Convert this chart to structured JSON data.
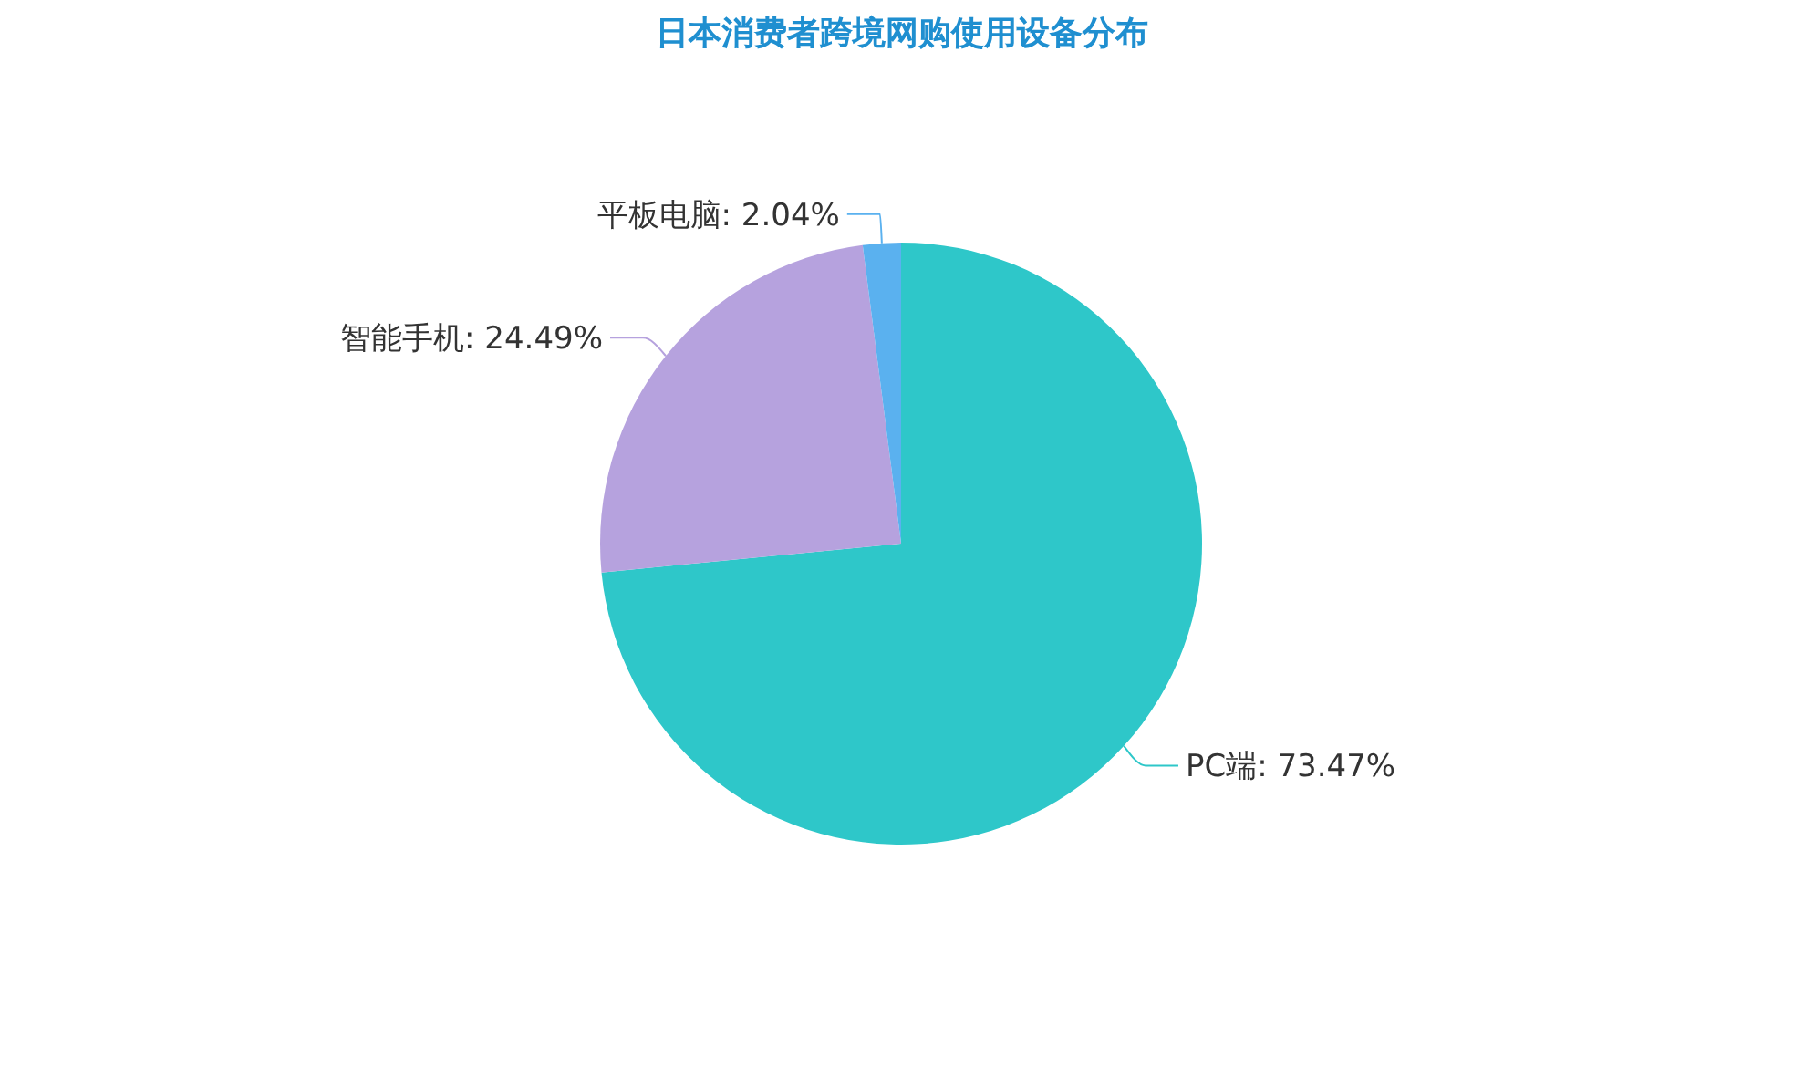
{
  "chart_data": {
    "type": "pie",
    "title": "日本消费者跨境网购使用设备分布",
    "categories": [
      "PC端",
      "智能手机",
      "平板电脑"
    ],
    "values": [
      73.47,
      24.49,
      2.04
    ],
    "value_labels": [
      "73.47%",
      "24.49%",
      "2.04%"
    ],
    "colors": [
      "#2ec7c9",
      "#b6a2de",
      "#5ab1ef"
    ]
  }
}
